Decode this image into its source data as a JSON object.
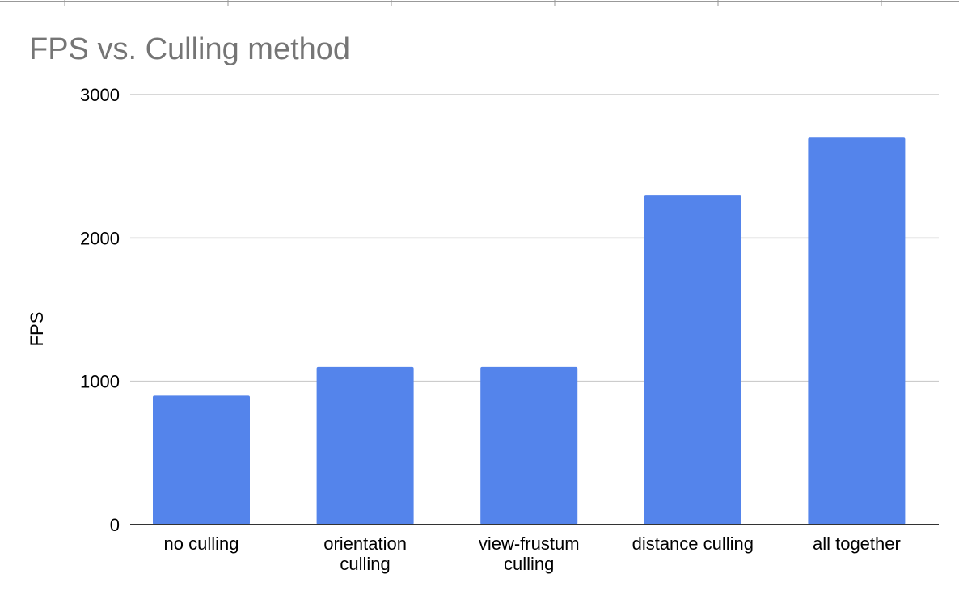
{
  "colors": {
    "bar": "#5484eb",
    "grid": "#cccccc",
    "axis": "#333333",
    "title": "#757575",
    "text": "#000000",
    "top_rule": "#999999"
  },
  "chart_data": {
    "type": "bar",
    "title": "FPS vs. Culling method",
    "xlabel": "",
    "ylabel": "FPS",
    "ylim": [
      0,
      3000
    ],
    "yticks": [
      0,
      1000,
      2000,
      3000
    ],
    "grid": true,
    "legend": "none",
    "categories": [
      "no culling",
      "orientation culling",
      "view-frustum culling",
      "distance culling",
      "all together"
    ],
    "category_lines": [
      [
        "no culling"
      ],
      [
        "orientation",
        "culling"
      ],
      [
        "view-frustum",
        "culling"
      ],
      [
        "distance culling"
      ],
      [
        "all together"
      ]
    ],
    "values": [
      900,
      1100,
      1100,
      2300,
      2700
    ]
  }
}
